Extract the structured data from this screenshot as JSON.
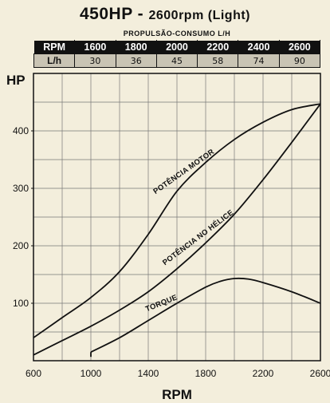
{
  "header": {
    "title_main": "450HP - ",
    "title_rpm": "2600rpm (Light)",
    "subtitle": "PROPULSÃO-CONSUMO L/H"
  },
  "consumo_table": {
    "rpm_label": "RPM",
    "lh_label": "L/h",
    "rpm": [
      "1600",
      "1800",
      "2000",
      "2200",
      "2400",
      "2600"
    ],
    "lh": [
      "30",
      "36",
      "45",
      "58",
      "74",
      "90"
    ]
  },
  "chart_data": {
    "type": "line",
    "title": "450HP - 2600rpm (Light)",
    "xlabel": "RPM",
    "ylabel": "HP",
    "xlim": [
      600,
      2600
    ],
    "ylim": [
      0,
      500
    ],
    "x_ticks": [
      600,
      1000,
      1400,
      1800,
      2200,
      2600
    ],
    "y_ticks": [
      100,
      200,
      300,
      400
    ],
    "grid": true,
    "x_minor_step": 200,
    "y_minor_step": 50,
    "series": [
      {
        "name": "POTÊNCIA MOTOR",
        "x": [
          600,
          800,
          1000,
          1200,
          1400,
          1600,
          1800,
          2000,
          2200,
          2400,
          2600
        ],
        "y": [
          40,
          75,
          110,
          155,
          220,
          295,
          345,
          385,
          415,
          437,
          447
        ]
      },
      {
        "name": "POTÊNCIA NO HÉLICE",
        "x": [
          600,
          800,
          1000,
          1200,
          1400,
          1600,
          1800,
          2000,
          2200,
          2400,
          2600
        ],
        "y": [
          10,
          35,
          60,
          88,
          120,
          160,
          205,
          255,
          315,
          380,
          447
        ]
      },
      {
        "name": "TORQUE",
        "x": [
          1000,
          1200,
          1400,
          1600,
          1800,
          1900,
          2000,
          2100,
          2200,
          2400,
          2600
        ],
        "y": [
          15,
          40,
          70,
          100,
          128,
          138,
          143,
          142,
          136,
          120,
          100
        ]
      }
    ]
  }
}
